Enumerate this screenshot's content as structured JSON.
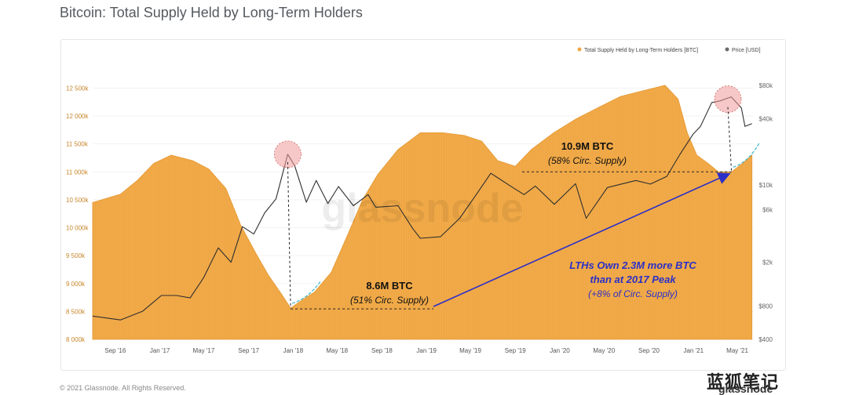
{
  "page": {
    "title": "Bitcoin: Total Supply Held by Long-Term Holders",
    "copyright": "© 2021 Glassnode. All Rights Reserved.",
    "watermark": "glassnode",
    "wechat_label": "蓝狐笔记",
    "brand_mark": "glassnode"
  },
  "colors": {
    "supply": "#f0a641",
    "price": "#2f2f2f",
    "arrow": "#2b2fc7",
    "highlight": "#f19a9a",
    "growth": "#38b6c8"
  },
  "chart_data": {
    "type": "area",
    "legend_position": "top-right",
    "legend": [
      {
        "label": "Total Supply Held by Long-Term Holders [BTC]",
        "color": "#f0a641"
      },
      {
        "label": "Price [USD]",
        "color": "#6b6b6b"
      }
    ],
    "x_ticks": [
      "Sep '16",
      "Jan '17",
      "May '17",
      "Sep '17",
      "Jan '18",
      "May '18",
      "Sep '18",
      "Jan '19",
      "May '19",
      "Sep '19",
      "Jan '20",
      "May '20",
      "Sep '20",
      "Jan '21",
      "May '21"
    ],
    "y_left_ticks": [
      "8 000k",
      "8 500k",
      "9 000k",
      "9 500k",
      "10 000k",
      "10 500k",
      "11 000k",
      "11 500k",
      "12 000k",
      "12 500k"
    ],
    "y_left_range": [
      8000000,
      12800000
    ],
    "y_right_ticks": [
      "$400",
      "$800",
      "$2k",
      "$6k",
      "$10k",
      "$40k",
      "$80k"
    ],
    "y_right_values": [
      400,
      800,
      2000,
      6000,
      10000,
      40000,
      80000
    ],
    "y_right_scale": "log",
    "x_range": [
      "2016-07-01",
      "2021-06-15"
    ],
    "series": [
      {
        "name": "Total Supply Held by Long-Term Holders [BTC]",
        "points": [
          [
            "2016-07-01",
            10450000
          ],
          [
            "2016-09-15",
            10600000
          ],
          [
            "2016-11-01",
            10850000
          ],
          [
            "2016-12-15",
            11150000
          ],
          [
            "2017-02-01",
            11300000
          ],
          [
            "2017-04-01",
            11200000
          ],
          [
            "2017-05-15",
            11050000
          ],
          [
            "2017-07-01",
            10700000
          ],
          [
            "2017-08-10",
            10050000
          ],
          [
            "2017-09-20",
            9550000
          ],
          [
            "2017-10-25",
            9150000
          ],
          [
            "2017-12-01",
            8800000
          ],
          [
            "2017-12-25",
            8560000
          ],
          [
            "2018-01-20",
            8680000
          ],
          [
            "2018-03-01",
            8850000
          ],
          [
            "2018-04-15",
            9200000
          ],
          [
            "2018-06-01",
            9900000
          ],
          [
            "2018-07-10",
            10500000
          ],
          [
            "2018-08-20",
            10950000
          ],
          [
            "2018-10-15",
            11400000
          ],
          [
            "2018-12-15",
            11700000
          ],
          [
            "2019-02-15",
            11700000
          ],
          [
            "2019-04-15",
            11650000
          ],
          [
            "2019-06-01",
            11550000
          ],
          [
            "2019-07-15",
            11200000
          ],
          [
            "2019-09-01",
            11100000
          ],
          [
            "2019-10-15",
            11400000
          ],
          [
            "2019-12-15",
            11700000
          ],
          [
            "2020-02-15",
            11950000
          ],
          [
            "2020-04-15",
            12150000
          ],
          [
            "2020-06-15",
            12350000
          ],
          [
            "2020-08-15",
            12450000
          ],
          [
            "2020-10-15",
            12550000
          ],
          [
            "2020-11-20",
            12300000
          ],
          [
            "2020-12-15",
            11700000
          ],
          [
            "2021-01-10",
            11300000
          ],
          [
            "2021-02-10",
            11150000
          ],
          [
            "2021-03-10",
            11000000
          ],
          [
            "2021-04-15",
            11000000
          ],
          [
            "2021-05-15",
            11150000
          ],
          [
            "2021-06-10",
            11300000
          ]
        ]
      },
      {
        "name": "Price [USD]",
        "points": [
          [
            "2016-07-01",
            650
          ],
          [
            "2016-09-15",
            600
          ],
          [
            "2016-11-15",
            720
          ],
          [
            "2017-01-05",
            1000
          ],
          [
            "2017-02-15",
            1000
          ],
          [
            "2017-03-25",
            950
          ],
          [
            "2017-05-01",
            1450
          ],
          [
            "2017-06-10",
            2700
          ],
          [
            "2017-07-15",
            2000
          ],
          [
            "2017-08-15",
            4200
          ],
          [
            "2017-09-15",
            3600
          ],
          [
            "2017-10-15",
            5600
          ],
          [
            "2017-11-15",
            7500
          ],
          [
            "2017-12-17",
            19000
          ],
          [
            "2018-01-05",
            15000
          ],
          [
            "2018-02-06",
            7000
          ],
          [
            "2018-03-05",
            11000
          ],
          [
            "2018-04-06",
            6800
          ],
          [
            "2018-05-05",
            9700
          ],
          [
            "2018-06-15",
            6500
          ],
          [
            "2018-07-25",
            8200
          ],
          [
            "2018-08-15",
            6300
          ],
          [
            "2018-10-15",
            6500
          ],
          [
            "2018-11-25",
            4000
          ],
          [
            "2018-12-15",
            3300
          ],
          [
            "2019-02-08",
            3400
          ],
          [
            "2019-04-02",
            5000
          ],
          [
            "2019-05-15",
            8000
          ],
          [
            "2019-06-26",
            12800
          ],
          [
            "2019-08-15",
            10000
          ],
          [
            "2019-09-25",
            8200
          ],
          [
            "2019-10-26",
            9800
          ],
          [
            "2019-12-17",
            6700
          ],
          [
            "2020-02-13",
            10300
          ],
          [
            "2020-03-13",
            5000
          ],
          [
            "2020-05-10",
            9500
          ],
          [
            "2020-07-27",
            11000
          ],
          [
            "2020-09-05",
            10200
          ],
          [
            "2020-10-20",
            12000
          ],
          [
            "2020-11-25",
            19000
          ],
          [
            "2020-12-31",
            29000
          ],
          [
            "2021-01-20",
            34000
          ],
          [
            "2021-02-20",
            56000
          ],
          [
            "2021-03-15",
            58000
          ],
          [
            "2021-04-14",
            63000
          ],
          [
            "2021-05-12",
            50000
          ],
          [
            "2021-05-22",
            34000
          ],
          [
            "2021-06-10",
            36000
          ]
        ]
      }
    ],
    "annotations": [
      {
        "text": "8.6M BTC",
        "sub": "(51% Circ. Supply)"
      },
      {
        "text": "10.9M BTC",
        "sub": "(58% Circ. Supply)"
      },
      {
        "text": "LTHs Own  2.3M more BTC",
        "line2": "than at 2017 Peak",
        "line3": "(+8% of Circ. Supply)"
      }
    ]
  }
}
